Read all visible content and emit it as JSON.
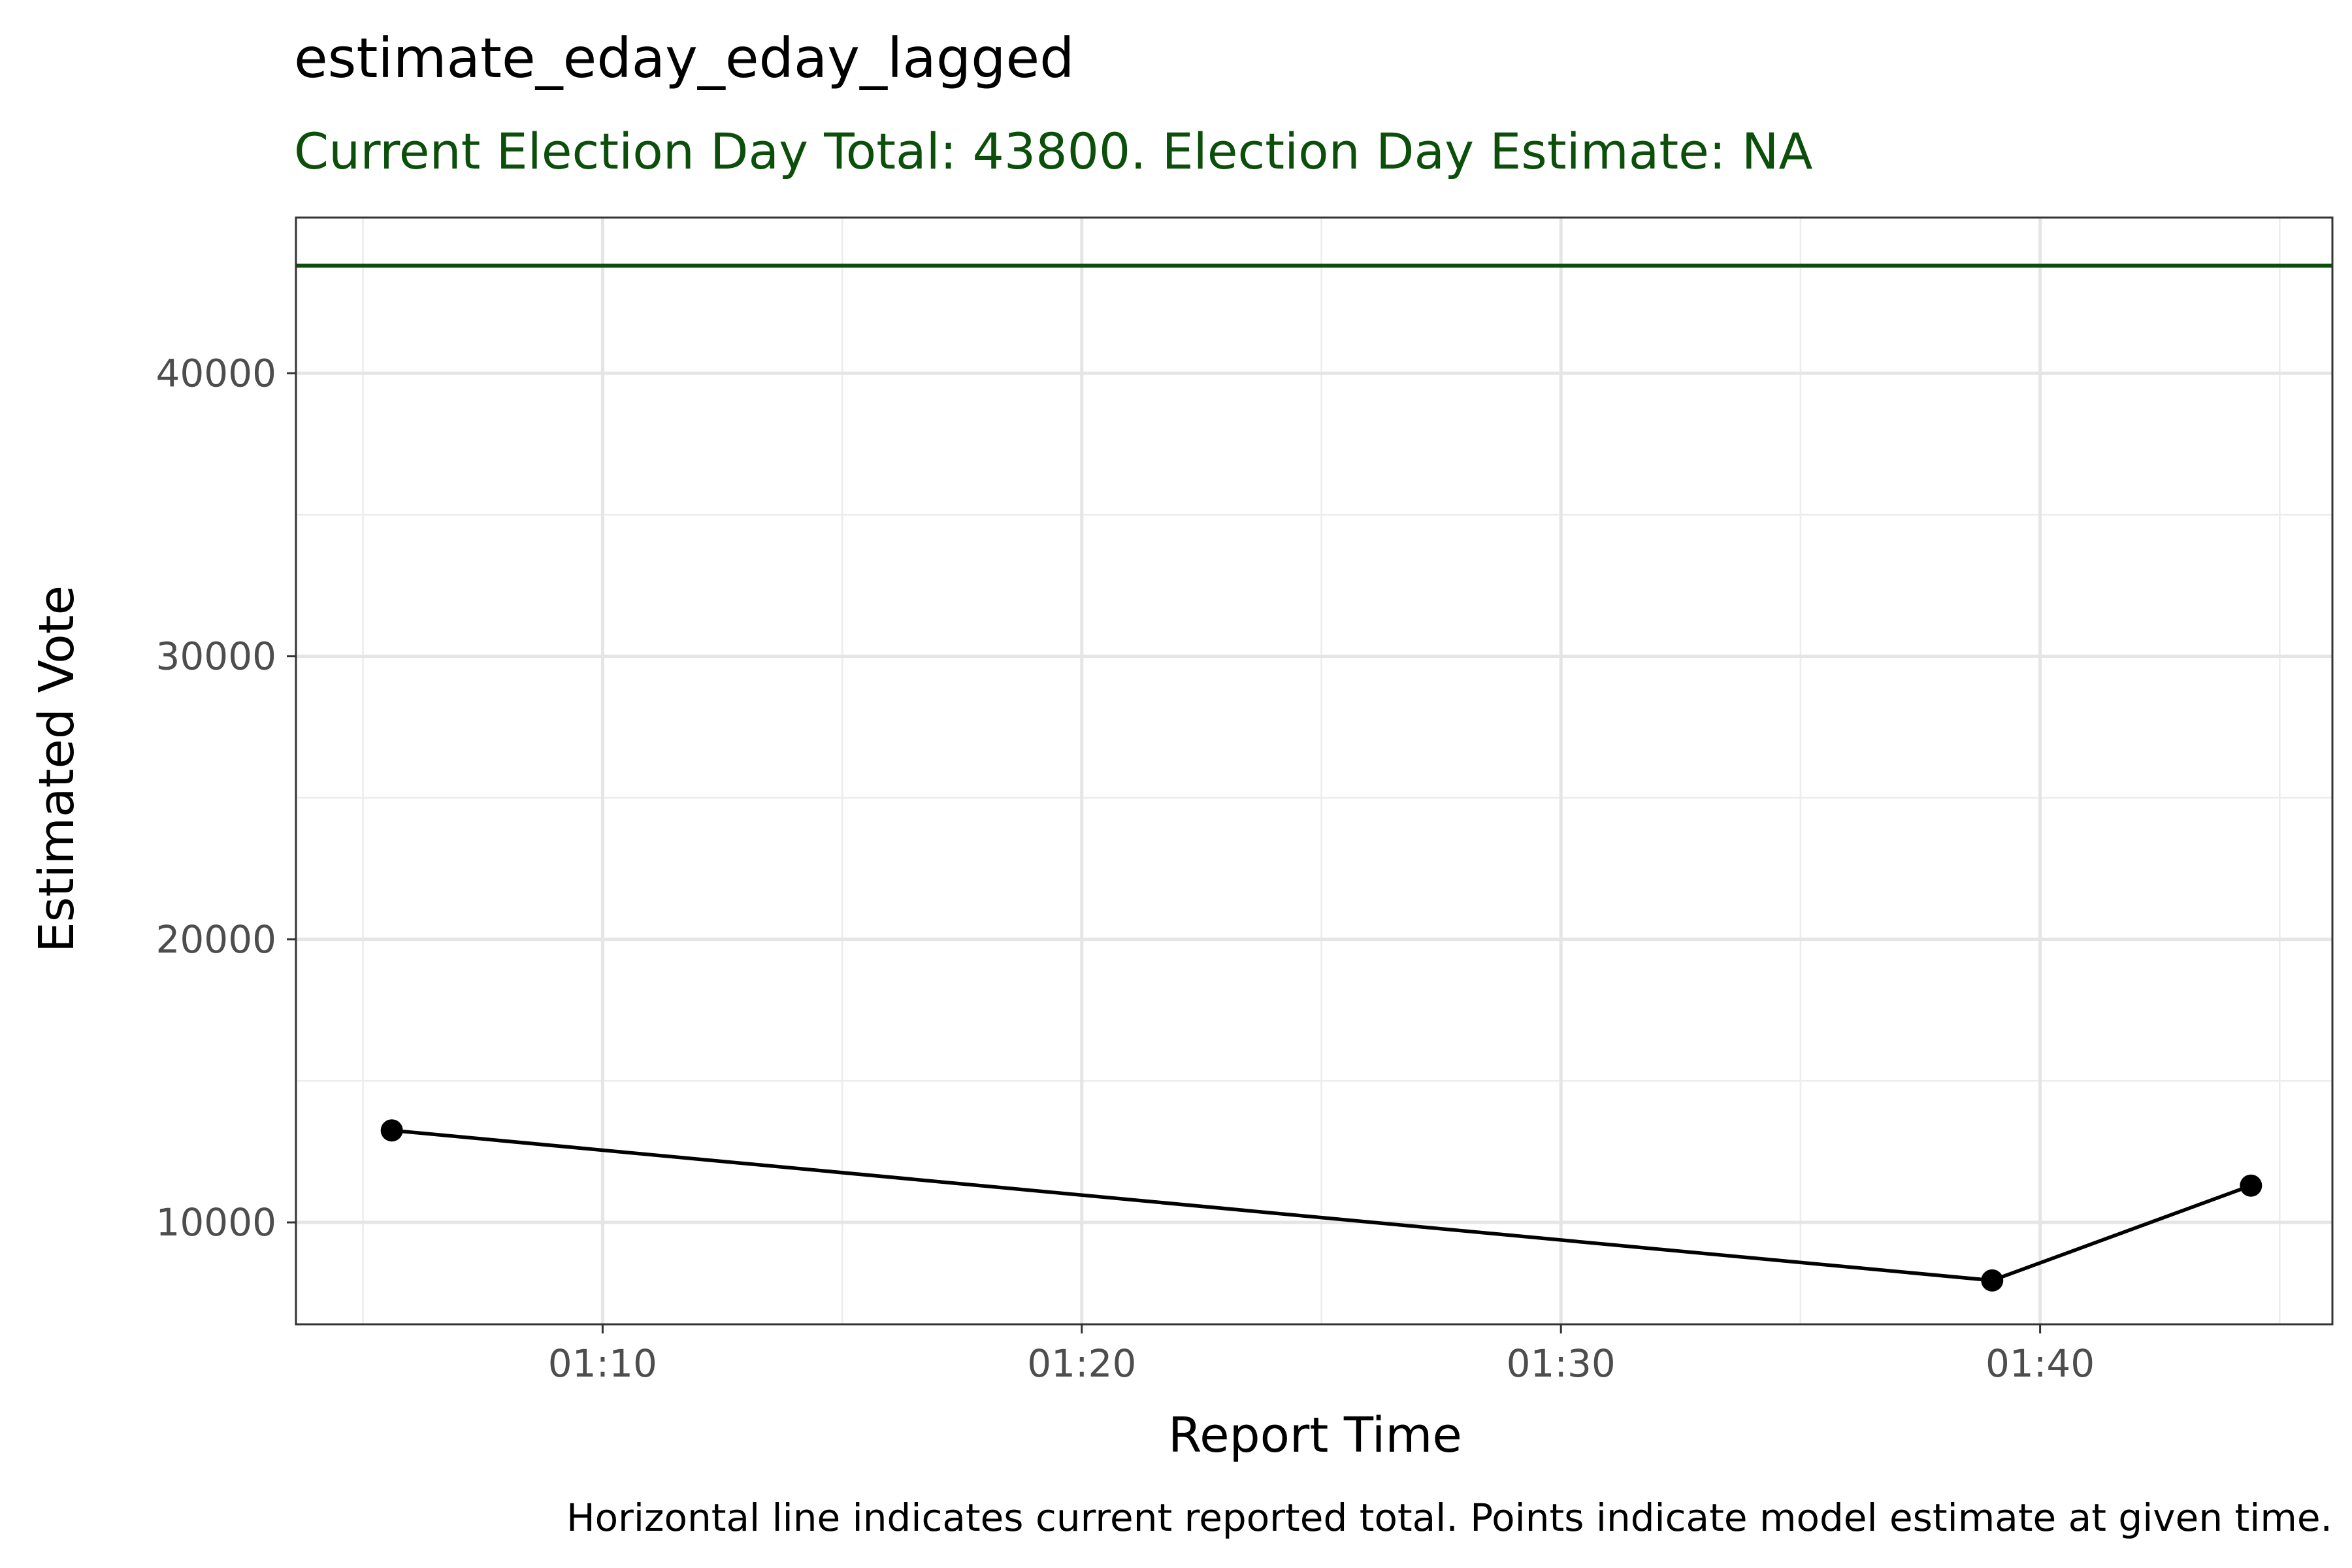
{
  "chart_data": {
    "type": "line",
    "title": "estimate_eday_eday_lagged",
    "subtitle": "Current Election Day Total: 43800. Election Day Estimate: NA",
    "xlabel": "Report Time",
    "ylabel": "Estimated Vote",
    "caption": "Horizontal line indicates current reported total. Points indicate model estimate at given time.",
    "x_ticks": [
      "01:10",
      "01:20",
      "01:30",
      "01:40"
    ],
    "x_tick_minutes": [
      70,
      80,
      90,
      100
    ],
    "x_minor_minutes": [
      65,
      75,
      85,
      95,
      105
    ],
    "xlim_minutes": [
      63.6,
      106.1
    ],
    "y_ticks": [
      10000,
      20000,
      30000,
      40000
    ],
    "y_tick_labels": [
      "10000",
      "20000",
      "30000",
      "40000"
    ],
    "y_minor": [
      15000,
      25000,
      35000
    ],
    "ylim": [
      6400,
      45500
    ],
    "grid": true,
    "reference_line": {
      "y": 43800,
      "color": "#0b4f0b"
    },
    "series": [
      {
        "x_minutes": [
          65.6,
          99.0,
          104.4
        ],
        "x_labels": [
          "01:05:36",
          "01:39:00",
          "01:44:24"
        ],
        "values": [
          13250,
          7950,
          11300
        ],
        "color": "#000000"
      }
    ],
    "colors": {
      "subtitle": "#0b4f0b",
      "reference_line": "#0b4f0b",
      "series": "#000000"
    }
  }
}
